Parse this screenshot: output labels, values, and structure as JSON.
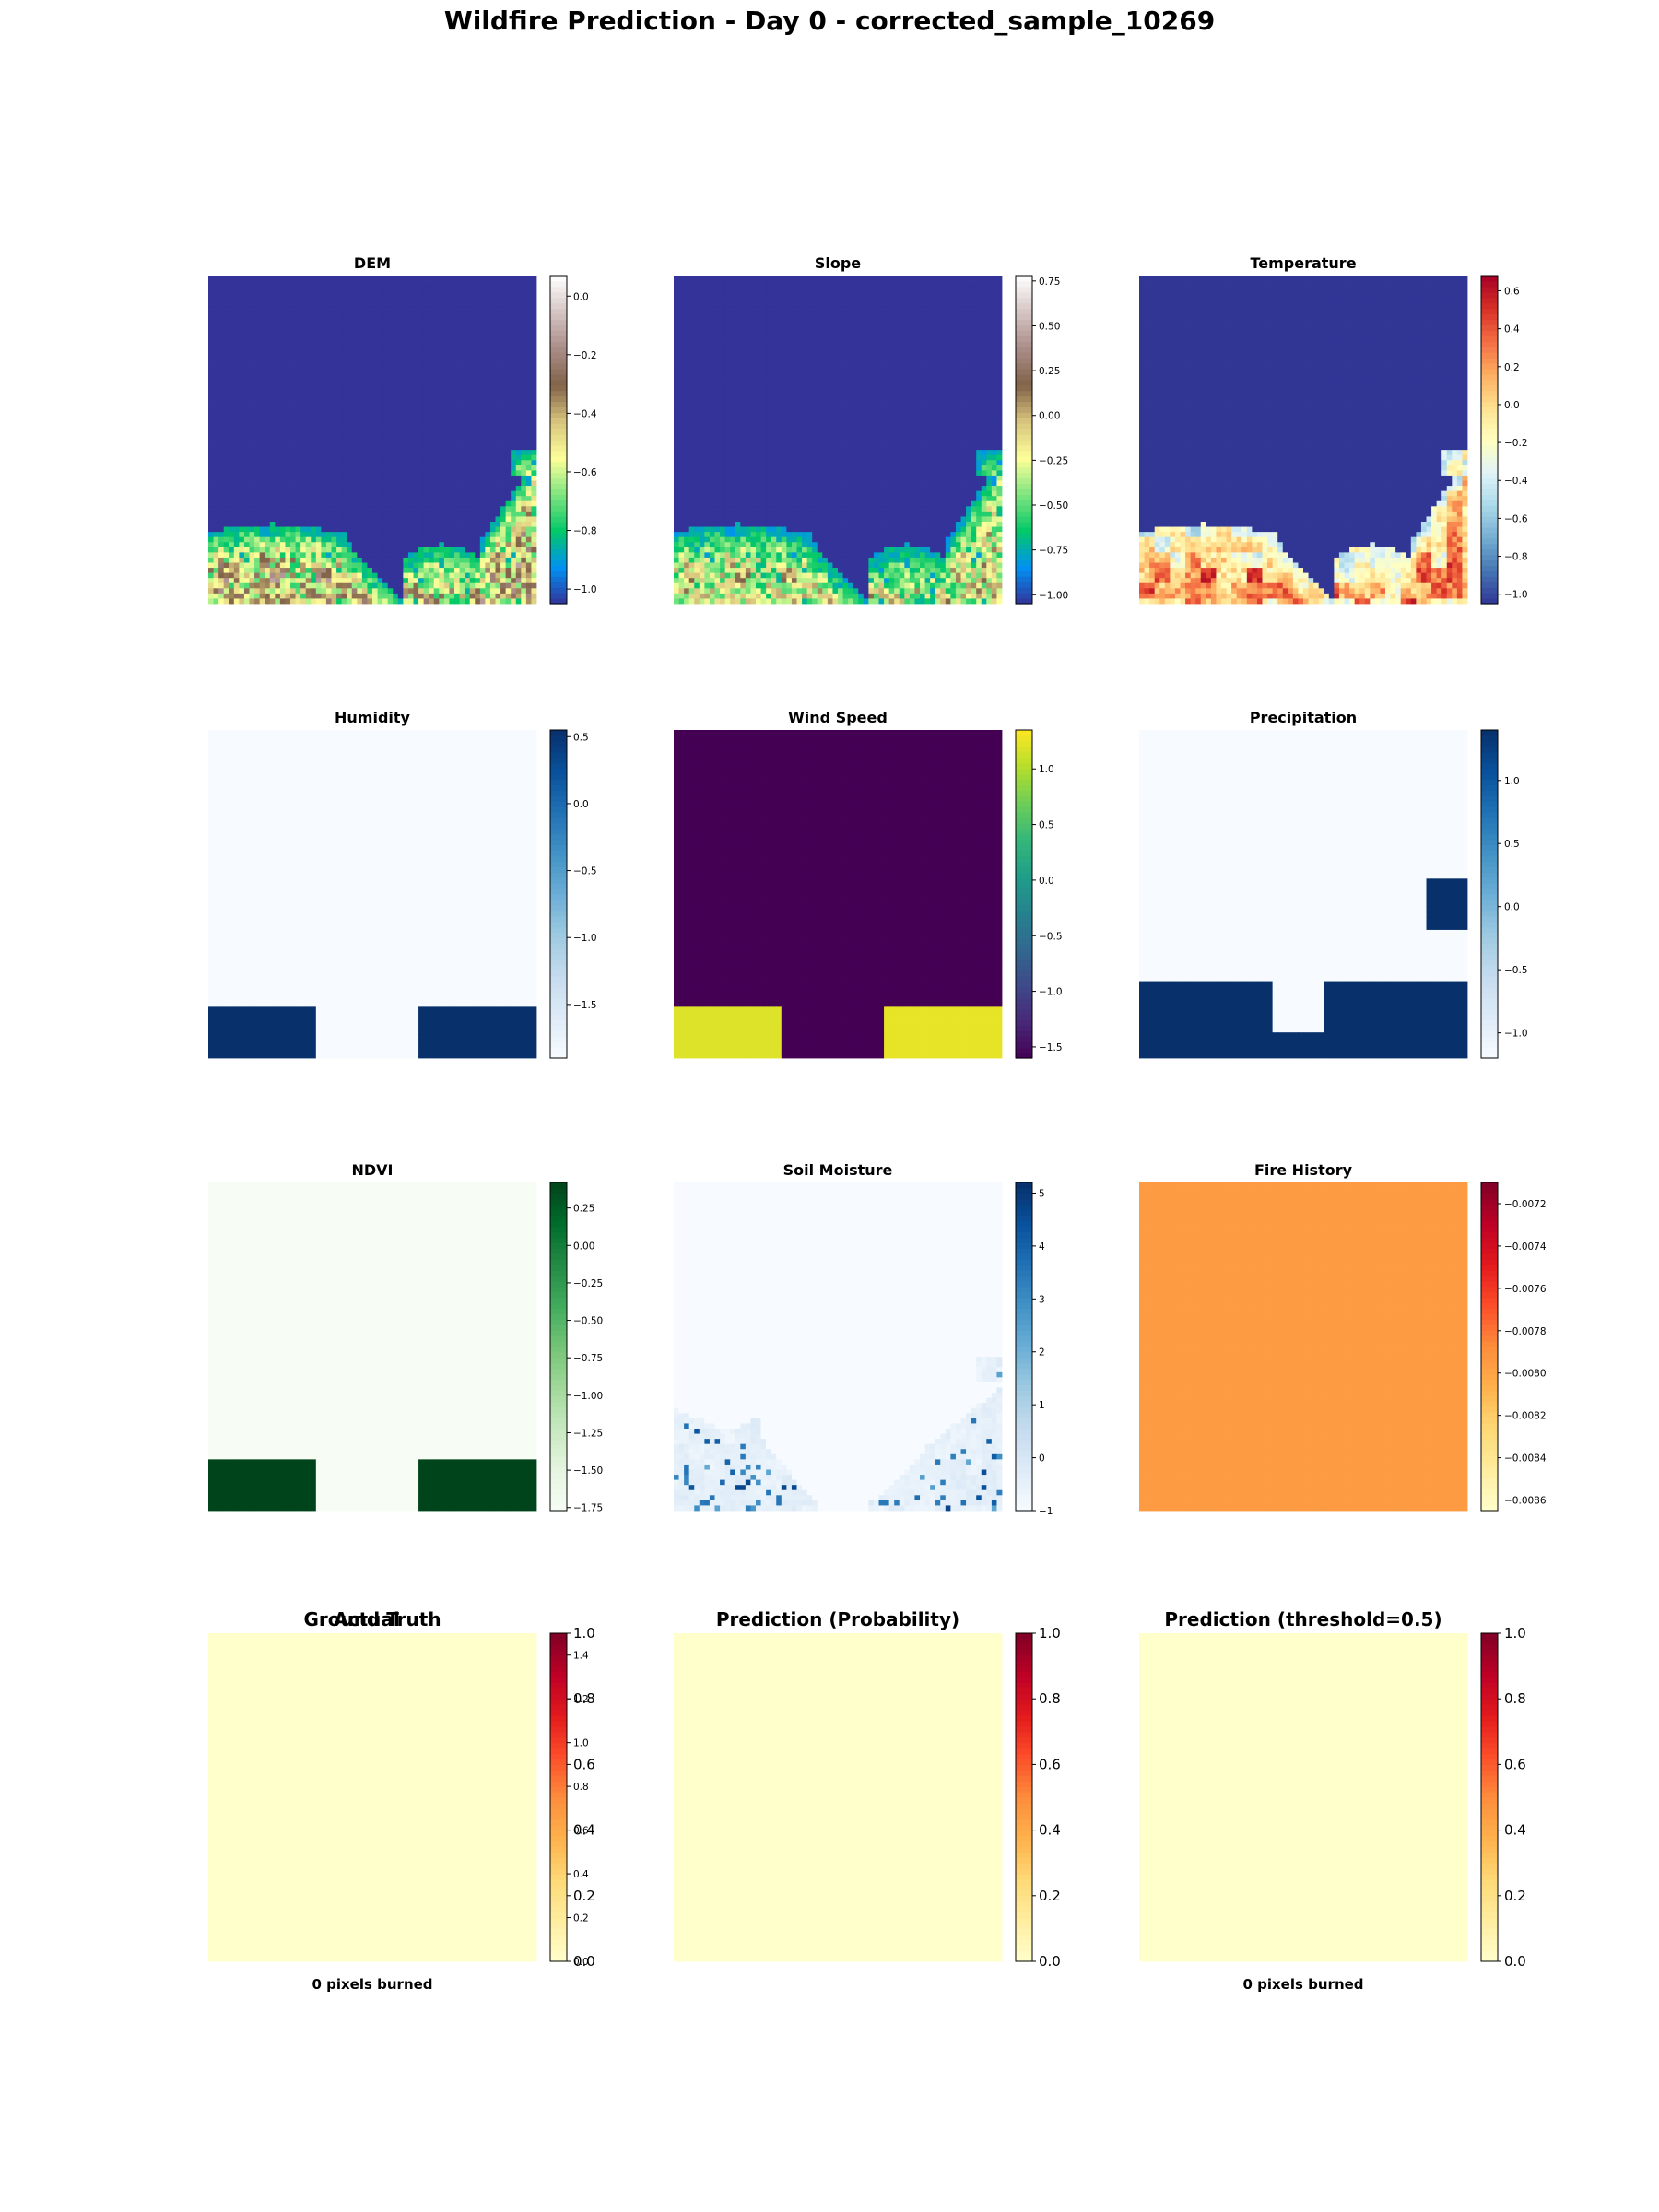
{
  "figure": {
    "title": "Wildfire Prediction - Day 0 - corrected_sample_10269"
  },
  "colors": {
    "terrain": [
      "#333399",
      "#0191f4",
      "#02c867",
      "#80e57f",
      "#feff99",
      "#d8c47e",
      "#816348",
      "#aa8c88",
      "#d4c5c3",
      "#ffffff"
    ],
    "RdYlBu_r": [
      "#313695",
      "#4575b4",
      "#74add1",
      "#abd9e9",
      "#e0f3f8",
      "#ffffbf",
      "#fee090",
      "#fdae61",
      "#f46d43",
      "#d73027",
      "#a50026"
    ],
    "Blues": [
      "#f7fbff",
      "#deebf7",
      "#c6dbef",
      "#9ecae1",
      "#6baed6",
      "#4292c6",
      "#2171b5",
      "#08519c",
      "#08306b"
    ],
    "viridis": [
      "#440154",
      "#482878",
      "#3e4989",
      "#31688e",
      "#26828e",
      "#1f9e89",
      "#35b779",
      "#6ece58",
      "#b5de2b",
      "#fde725"
    ],
    "Greens": [
      "#f7fcf5",
      "#e5f5e0",
      "#c7e9c0",
      "#a1d99b",
      "#74c476",
      "#41ab5d",
      "#238b45",
      "#006d2c",
      "#00441b"
    ],
    "YlOrRd": [
      "#ffffcc",
      "#ffeda0",
      "#fed976",
      "#feb24c",
      "#fd8d3c",
      "#fc4e2a",
      "#e31a1c",
      "#bd0026",
      "#800026"
    ]
  },
  "chart_data": [
    {
      "type": "heatmap",
      "title": "DEM",
      "colormap": "terrain",
      "colorbar": {
        "range": [
          -1.05,
          0.07
        ],
        "ticks": [
          0.0,
          -0.2,
          -0.4,
          -0.6,
          -0.8,
          -1.0
        ],
        "tick_labels": [
          "0.0",
          "−0.2",
          "−0.4",
          "−0.6",
          "−0.8",
          "−1.0"
        ]
      },
      "pattern": "terrain-blobs",
      "base_value": -1.05,
      "spread": 0.95
    },
    {
      "type": "heatmap",
      "title": "Slope",
      "colormap": "terrain",
      "colorbar": {
        "range": [
          -1.05,
          0.78
        ],
        "ticks": [
          0.75,
          0.5,
          0.25,
          0.0,
          -0.25,
          -0.5,
          -0.75,
          -1.0
        ],
        "tick_labels": [
          "0.75",
          "0.50",
          "0.25",
          "0.00",
          "−0.25",
          "−0.50",
          "−0.75",
          "−1.00"
        ]
      },
      "pattern": "terrain-blobs",
      "base_value": -1.05,
      "spread": 1.3
    },
    {
      "type": "heatmap",
      "title": "Temperature",
      "colormap": "RdYlBu_r",
      "colorbar": {
        "range": [
          -1.05,
          0.68
        ],
        "ticks": [
          0.6,
          0.4,
          0.2,
          0.0,
          -0.2,
          -0.4,
          -0.6,
          -0.8,
          -1.0
        ],
        "tick_labels": [
          "0.6",
          "0.4",
          "0.2",
          "0.0",
          "−0.2",
          "−0.4",
          "−0.6",
          "−0.8",
          "−1.0"
        ]
      },
      "pattern": "temperature-blobs",
      "base_value": -1.05,
      "spread": 1.7
    },
    {
      "type": "heatmap",
      "title": "Humidity",
      "colormap": "Blues",
      "colorbar": {
        "range": [
          -1.9,
          0.55
        ],
        "ticks": [
          0.5,
          0.0,
          -0.5,
          -1.0,
          -1.5
        ],
        "tick_labels": [
          "0.5",
          "0.0",
          "−0.5",
          "−1.0",
          "−1.5"
        ]
      },
      "grid_size": 64,
      "base_value": -1.9,
      "blocks": [
        {
          "x": [
            0,
            21
          ],
          "y": [
            54,
            64
          ],
          "value": 0.55
        },
        {
          "x": [
            41,
            64
          ],
          "y": [
            54,
            64
          ],
          "value": 0.55
        }
      ]
    },
    {
      "type": "heatmap",
      "title": "Wind Speed",
      "colormap": "viridis",
      "colorbar": {
        "range": [
          -1.6,
          1.35
        ],
        "ticks": [
          1.0,
          0.5,
          0.0,
          -0.5,
          -1.0,
          -1.5
        ],
        "tick_labels": [
          "1.0",
          "0.5",
          "0.0",
          "−0.5",
          "−1.0",
          "−1.5"
        ]
      },
      "grid_size": 64,
      "base_value": -1.6,
      "blocks": [
        {
          "x": [
            0,
            21
          ],
          "y": [
            54,
            64
          ],
          "value": 1.2
        },
        {
          "x": [
            41,
            64
          ],
          "y": [
            54,
            64
          ],
          "value": 1.25
        }
      ]
    },
    {
      "type": "heatmap",
      "title": "Precipitation",
      "colormap": "Blues",
      "colorbar": {
        "range": [
          -1.2,
          1.4
        ],
        "ticks": [
          1.0,
          0.5,
          0.0,
          -0.5,
          -1.0
        ],
        "tick_labels": [
          "1.0",
          "0.5",
          "0.0",
          "−0.5",
          "−1.0"
        ]
      },
      "grid_size": 64,
      "base_value": -1.2,
      "blocks": [
        {
          "x": [
            56,
            64
          ],
          "y": [
            29,
            39
          ],
          "value": 1.4
        },
        {
          "x": [
            0,
            26
          ],
          "y": [
            49,
            64
          ],
          "value": 1.4
        },
        {
          "x": [
            26,
            36
          ],
          "y": [
            59,
            64
          ],
          "value": 1.4
        },
        {
          "x": [
            36,
            64
          ],
          "y": [
            49,
            64
          ],
          "value": 1.4
        }
      ]
    },
    {
      "type": "heatmap",
      "title": "NDVI",
      "colormap": "Greens",
      "colorbar": {
        "range": [
          -1.77,
          0.42
        ],
        "ticks": [
          0.25,
          0.0,
          -0.25,
          -0.5,
          -0.75,
          -1.0,
          -1.25,
          -1.5,
          -1.75
        ],
        "tick_labels": [
          "0.25",
          "0.00",
          "−0.25",
          "−0.50",
          "−0.75",
          "−1.00",
          "−1.25",
          "−1.50",
          "−1.75"
        ]
      },
      "grid_size": 64,
      "base_value": -1.77,
      "blocks": [
        {
          "x": [
            0,
            21
          ],
          "y": [
            54,
            64
          ],
          "value": 0.42
        },
        {
          "x": [
            41,
            64
          ],
          "y": [
            54,
            64
          ],
          "value": 0.42
        }
      ]
    },
    {
      "type": "heatmap",
      "title": "Soil Moisture",
      "colormap": "Blues",
      "colorbar": {
        "range": [
          -1.0,
          5.2
        ],
        "ticks": [
          5,
          4,
          3,
          2,
          1,
          0,
          -1
        ],
        "tick_labels": [
          "5",
          "4",
          "3",
          "2",
          "1",
          "0",
          "−1"
        ]
      },
      "pattern": "soil-blobs",
      "base_value": -1.0,
      "spread": 2.6
    },
    {
      "type": "heatmap",
      "title": "Fire History",
      "colormap": "YlOrRd",
      "colorbar": {
        "range": [
          -0.00865,
          -0.0071
        ],
        "ticks": [
          -0.0072,
          -0.0074,
          -0.0076,
          -0.0078,
          -0.008,
          -0.0082,
          -0.0084,
          -0.0086
        ],
        "tick_labels": [
          "−0.0072",
          "−0.0074",
          "−0.0076",
          "−0.0078",
          "−0.0080",
          "−0.0082",
          "−0.0084",
          "−0.0086"
        ]
      },
      "grid_size": 64,
      "base_value": -0.00795,
      "blocks": []
    },
    {
      "type": "heatmap",
      "title": "Ground Truth",
      "overlay_title": "Actual",
      "colormap": "YlOrRd",
      "colorbar": {
        "range": [
          0,
          1.0
        ],
        "ticks": [
          1.0,
          0.8,
          0.6,
          0.4,
          0.2,
          0.0
        ],
        "tick_labels": [
          "1.0",
          "0.8",
          "0.6",
          "0.4",
          "0.2",
          "0.0"
        ]
      },
      "colorbar_overlay": {
        "range": [
          0,
          1.5
        ],
        "ticks": [
          1.4,
          1.2,
          1.0,
          0.8,
          0.6,
          0.4,
          0.2,
          0.0
        ],
        "tick_labels": [
          "1.4",
          "1.2",
          "1.0",
          "0.8",
          "0.6",
          "0.4",
          "0.2",
          "0.0"
        ]
      },
      "grid_size": 64,
      "base_value": 0,
      "blocks": [],
      "caption": "0 pixels burned"
    },
    {
      "type": "heatmap",
      "title": "Prediction (Probability)",
      "colormap": "YlOrRd",
      "colorbar": {
        "range": [
          0,
          1.0
        ],
        "ticks": [
          1.0,
          0.8,
          0.6,
          0.4,
          0.2,
          0.0
        ],
        "tick_labels": [
          "1.0",
          "0.8",
          "0.6",
          "0.4",
          "0.2",
          "0.0"
        ]
      },
      "grid_size": 64,
      "base_value": 0,
      "blocks": []
    },
    {
      "type": "heatmap",
      "title": "Prediction (threshold=0.5)",
      "colormap": "YlOrRd",
      "colorbar": {
        "range": [
          0,
          1.0
        ],
        "ticks": [
          1.0,
          0.8,
          0.6,
          0.4,
          0.2,
          0.0
        ],
        "tick_labels": [
          "1.0",
          "0.8",
          "0.6",
          "0.4",
          "0.2",
          "0.0"
        ]
      },
      "grid_size": 64,
      "base_value": 0,
      "blocks": [],
      "caption": "0 pixels burned"
    }
  ]
}
